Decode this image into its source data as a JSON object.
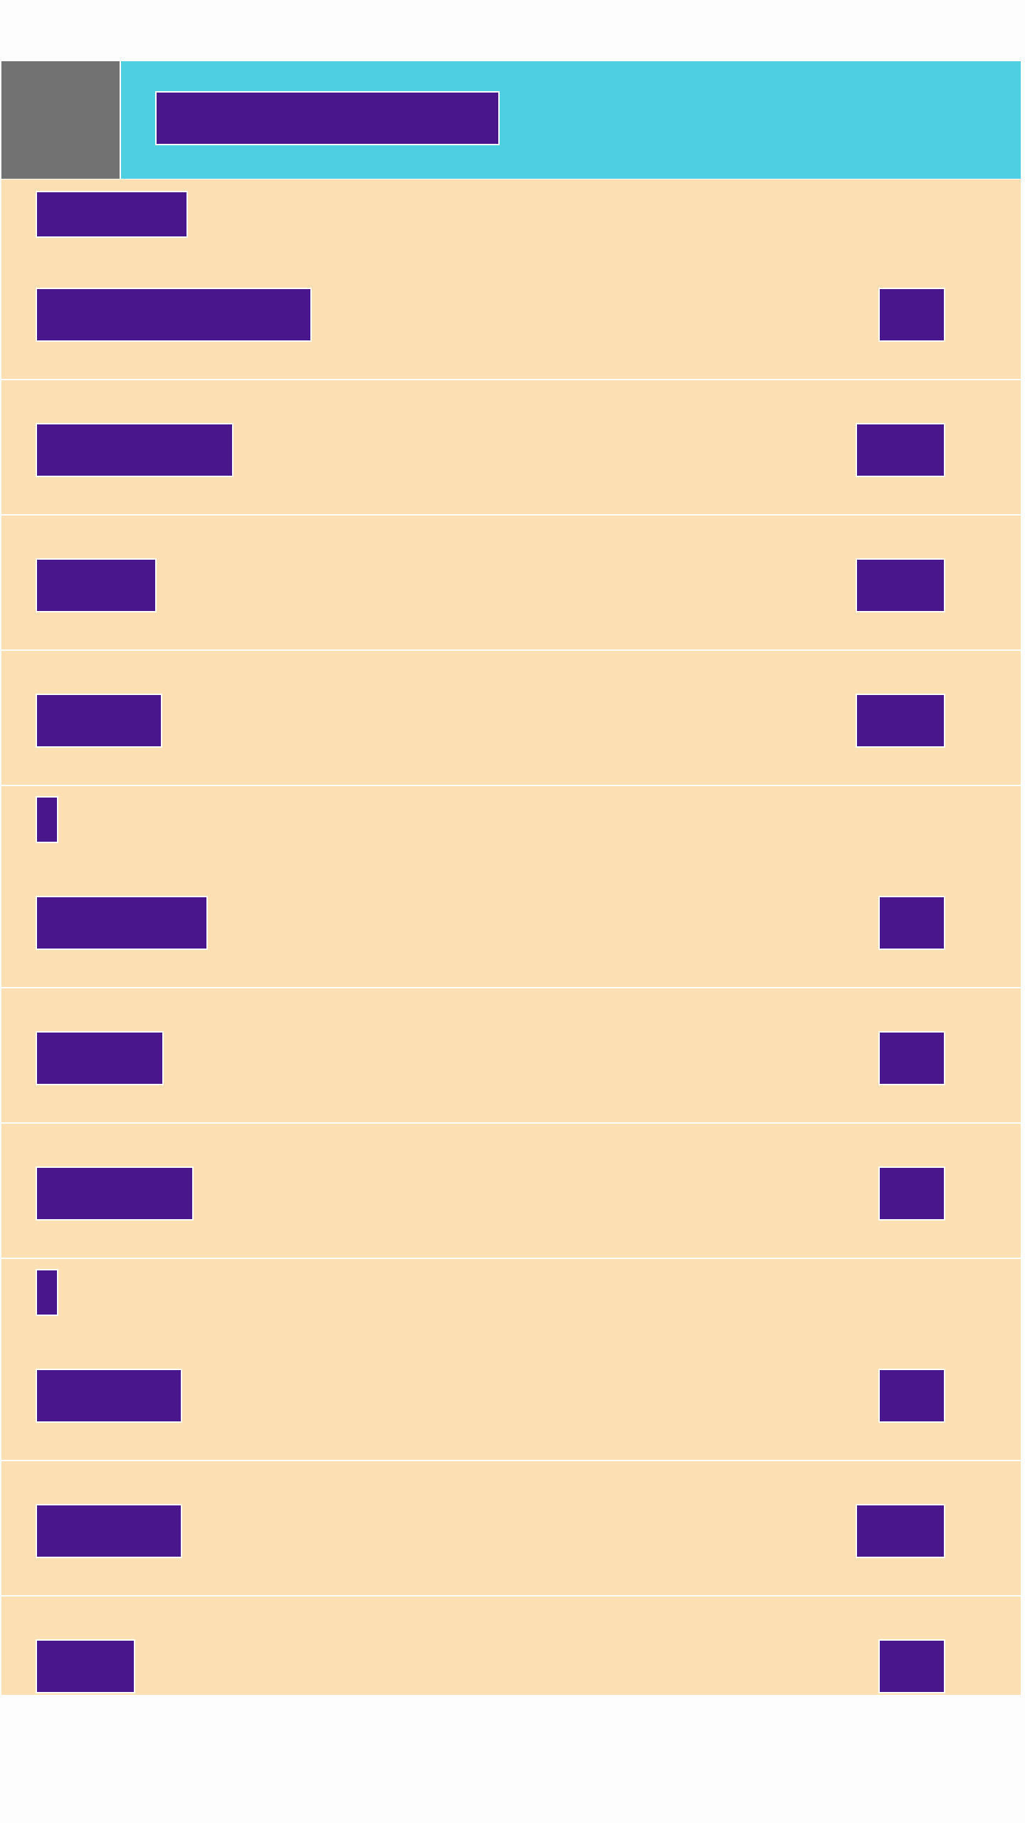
{
  "header": {
    "title": ""
  },
  "sections": [
    {
      "header": "",
      "items": [
        {
          "label": "",
          "value": ""
        },
        {
          "label": "",
          "value": ""
        },
        {
          "label": "",
          "value": ""
        },
        {
          "label": "",
          "value": ""
        }
      ]
    },
    {
      "header": "",
      "items": [
        {
          "label": "",
          "value": ""
        },
        {
          "label": "",
          "value": ""
        },
        {
          "label": "",
          "value": ""
        }
      ]
    },
    {
      "header": "",
      "items": [
        {
          "label": "",
          "value": ""
        },
        {
          "label": "",
          "value": ""
        },
        {
          "label": "",
          "value": ""
        }
      ]
    }
  ],
  "colors": {
    "header_bg": "#4ecfe2",
    "nav_button_bg": "#727272",
    "list_bg": "#fcdfb3",
    "text_block": "#4a168c",
    "divider": "#ffffff"
  }
}
